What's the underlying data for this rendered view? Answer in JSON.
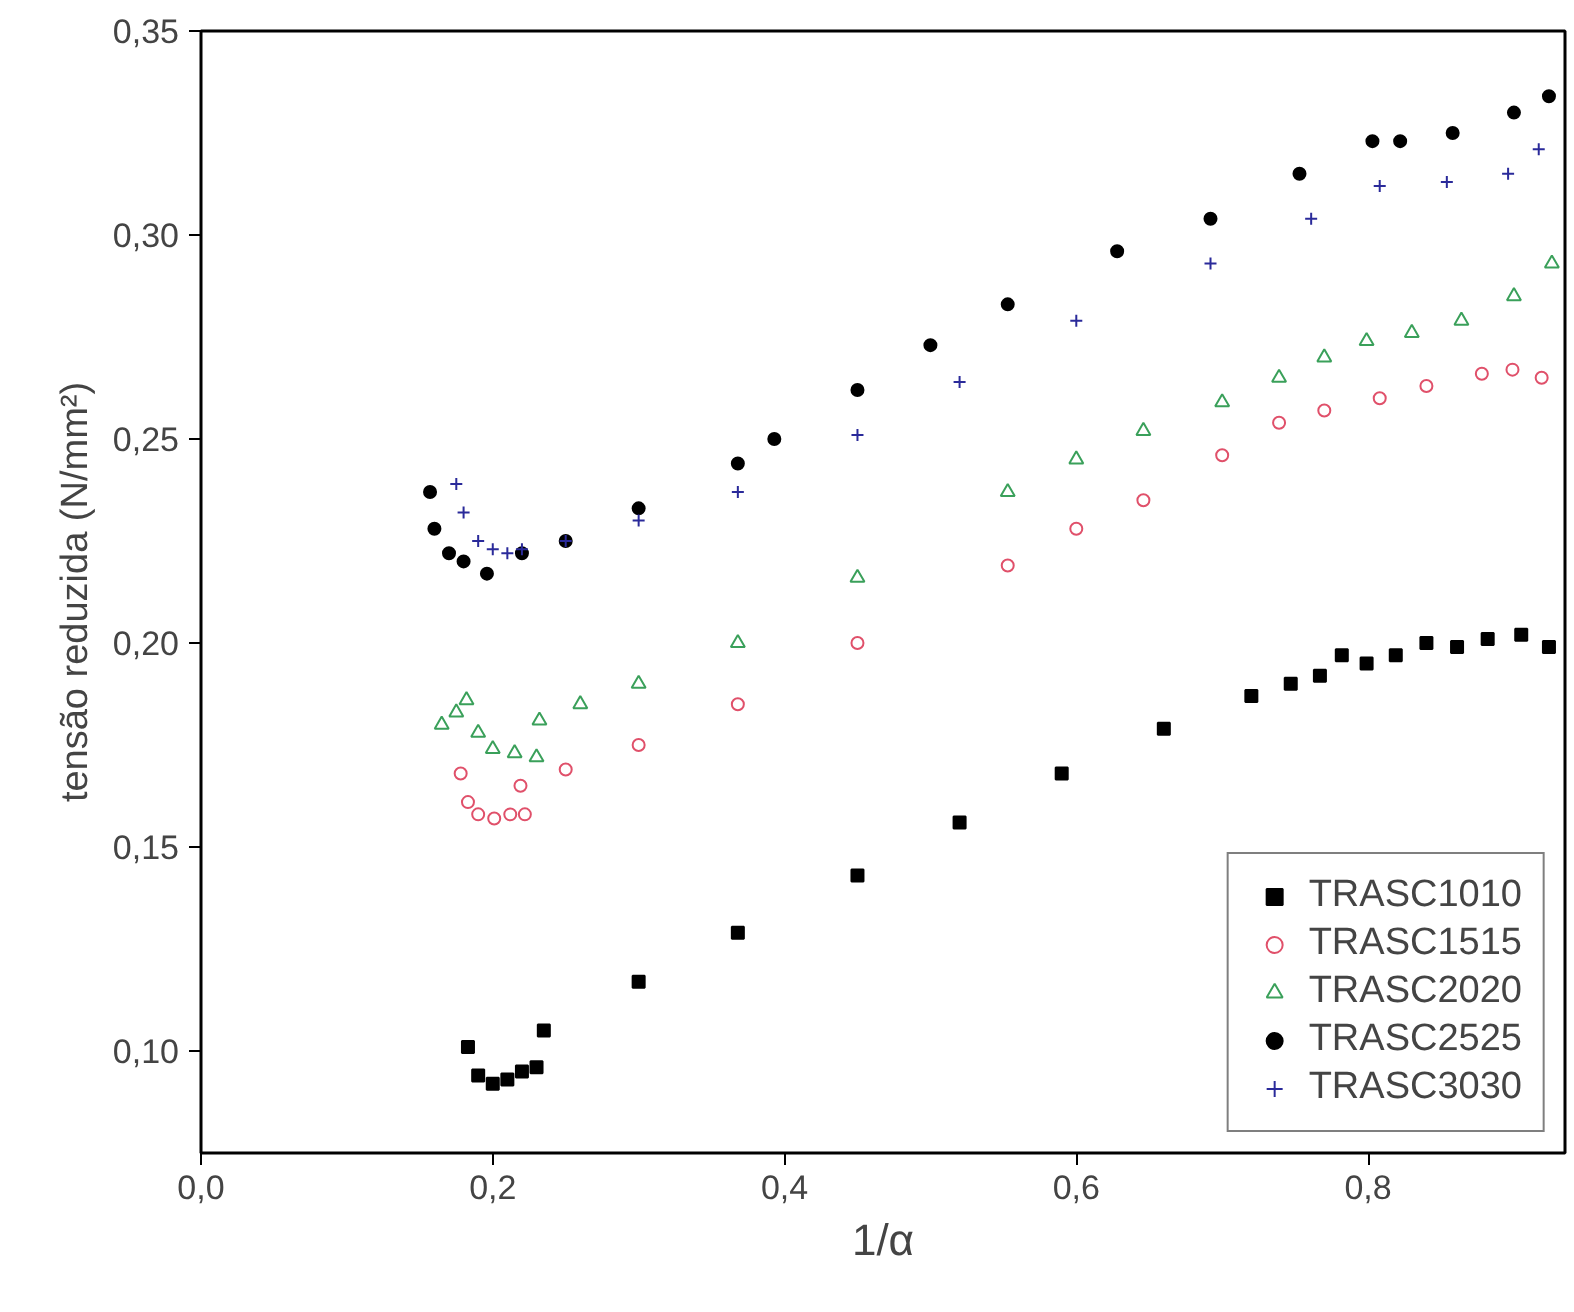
{
  "chart_data": {
    "type": "scatter",
    "xlabel": "1/α",
    "ylabel": "tensão reduzida (N/mm²)",
    "xlim": [
      0,
      0.935
    ],
    "ylim": [
      0.075,
      0.35
    ],
    "xticks": [
      {
        "value": 0,
        "label": "0,0"
      },
      {
        "value": 0.2,
        "label": "0,2"
      },
      {
        "value": 0.4,
        "label": "0,4"
      },
      {
        "value": 0.6,
        "label": "0,6"
      },
      {
        "value": 0.8,
        "label": "0,8"
      }
    ],
    "yticks": [
      {
        "value": 0.1,
        "label": "0,10"
      },
      {
        "value": 0.15,
        "label": "0,15"
      },
      {
        "value": 0.2,
        "label": "0,20"
      },
      {
        "value": 0.25,
        "label": "0,25"
      },
      {
        "value": 0.3,
        "label": "0,30"
      },
      {
        "value": 0.35,
        "label": "0,35"
      }
    ],
    "grid": false,
    "legend": "bottom right",
    "series": [
      {
        "name": "TRASC1010",
        "color": "#000000",
        "marker": "square",
        "x": [
          0.183,
          0.19,
          0.2,
          0.21,
          0.22,
          0.23,
          0.235,
          0.3,
          0.368,
          0.45,
          0.52,
          0.59,
          0.66,
          0.72,
          0.747,
          0.767,
          0.782,
          0.799,
          0.819,
          0.84,
          0.861,
          0.882,
          0.905,
          0.924
        ],
        "values": [
          0.101,
          0.094,
          0.092,
          0.093,
          0.095,
          0.096,
          0.105,
          0.117,
          0.129,
          0.143,
          0.156,
          0.168,
          0.179,
          0.187,
          0.19,
          0.192,
          0.197,
          0.195,
          0.197,
          0.2,
          0.199,
          0.201,
          0.202,
          0.199
        ]
      },
      {
        "name": "TRASC1515",
        "color": "#e0506a",
        "marker": "circle",
        "x": [
          0.178,
          0.183,
          0.19,
          0.201,
          0.212,
          0.222,
          0.219,
          0.25,
          0.3,
          0.368,
          0.45,
          0.553,
          0.6,
          0.646,
          0.7,
          0.739,
          0.77,
          0.808,
          0.84,
          0.878,
          0.899,
          0.919
        ],
        "values": [
          0.168,
          0.161,
          0.158,
          0.157,
          0.158,
          0.158,
          0.165,
          0.169,
          0.175,
          0.185,
          0.2,
          0.219,
          0.228,
          0.235,
          0.246,
          0.254,
          0.257,
          0.26,
          0.263,
          0.266,
          0.267,
          0.265
        ]
      },
      {
        "name": "TRASC2020",
        "color": "#3aa05a",
        "marker": "triangle",
        "x": [
          0.165,
          0.175,
          0.182,
          0.19,
          0.2,
          0.215,
          0.23,
          0.232,
          0.26,
          0.3,
          0.368,
          0.45,
          0.553,
          0.6,
          0.646,
          0.7,
          0.739,
          0.77,
          0.799,
          0.83,
          0.864,
          0.9,
          0.926
        ],
        "values": [
          0.18,
          0.183,
          0.186,
          0.178,
          0.174,
          0.173,
          0.172,
          0.181,
          0.185,
          0.19,
          0.2,
          0.216,
          0.237,
          0.245,
          0.252,
          0.259,
          0.265,
          0.27,
          0.274,
          0.276,
          0.279,
          0.285,
          0.293
        ]
      },
      {
        "name": "TRASC2525",
        "color": "#000000",
        "marker": "circle",
        "x": [
          0.157,
          0.16,
          0.17,
          0.18,
          0.196,
          0.22,
          0.25,
          0.3,
          0.368,
          0.393,
          0.45,
          0.5,
          0.553,
          0.628,
          0.692,
          0.753,
          0.803,
          0.822,
          0.858,
          0.9,
          0.924
        ],
        "values": [
          0.237,
          0.228,
          0.222,
          0.22,
          0.217,
          0.222,
          0.225,
          0.233,
          0.244,
          0.25,
          0.262,
          0.273,
          0.283,
          0.296,
          0.304,
          0.315,
          0.323,
          0.323,
          0.325,
          0.33,
          0.334
        ]
      },
      {
        "name": "TRASC3030",
        "color": "#2a2a9a",
        "marker": "cross",
        "x": [
          0.175,
          0.18,
          0.19,
          0.2,
          0.21,
          0.22,
          0.25,
          0.3,
          0.368,
          0.45,
          0.52,
          0.6,
          0.692,
          0.761,
          0.808,
          0.854,
          0.896,
          0.917
        ],
        "values": [
          0.239,
          0.232,
          0.225,
          0.223,
          0.222,
          0.223,
          0.225,
          0.23,
          0.237,
          0.251,
          0.264,
          0.279,
          0.293,
          0.304,
          0.312,
          0.313,
          0.315,
          0.321
        ]
      }
    ]
  }
}
